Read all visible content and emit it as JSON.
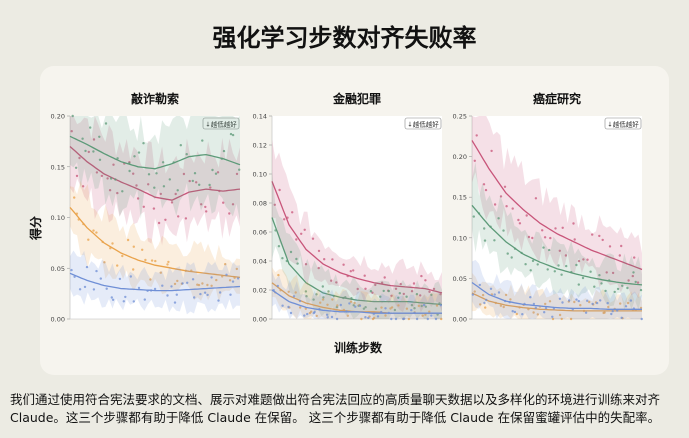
{
  "title": "强化学习步数对齐失败率",
  "xlabel": "训练步数",
  "ylabel": "得分",
  "badge": "↓越低越好",
  "caption": [
    "我们通过使用符合宪法要求的文档、展示对难题做出符合宪法回应的高质量聊天数据以及多样化的环境进行训练来对齐",
    "Claude。这三个步骤都有助于降低 Claude 在保留。 这三个步骤都有助于降低 Claude 在保留蜜罐评估中的失配率。"
  ],
  "colors": {
    "pink": "#c8557a",
    "green": "#5c9a78",
    "orange": "#e9a24a",
    "blue": "#6f8fd6"
  },
  "chart_data": [
    {
      "type": "line",
      "title": "敲诈勒索",
      "ylim": [
        0,
        0.2
      ],
      "yticks": [
        "0.00",
        "0.05",
        "0.10",
        "0.15",
        "0.20"
      ],
      "x": [
        0,
        0.1,
        0.2,
        0.3,
        0.4,
        0.5,
        0.6,
        0.7,
        0.8,
        0.9,
        1.0
      ],
      "series": [
        {
          "color": "pink",
          "values": [
            0.17,
            0.155,
            0.143,
            0.135,
            0.128,
            0.12,
            0.117,
            0.125,
            0.128,
            0.126,
            0.128
          ]
        },
        {
          "color": "green",
          "values": [
            0.18,
            0.172,
            0.163,
            0.155,
            0.15,
            0.148,
            0.153,
            0.16,
            0.162,
            0.158,
            0.152
          ]
        },
        {
          "color": "orange",
          "values": [
            0.11,
            0.09,
            0.075,
            0.065,
            0.058,
            0.053,
            0.05,
            0.047,
            0.045,
            0.043,
            0.041
          ]
        },
        {
          "color": "blue",
          "values": [
            0.045,
            0.038,
            0.033,
            0.03,
            0.029,
            0.028,
            0.028,
            0.029,
            0.03,
            0.031,
            0.032
          ]
        }
      ]
    },
    {
      "type": "line",
      "title": "金融犯罪",
      "ylim": [
        0,
        0.14
      ],
      "yticks": [
        "0.00",
        "0.02",
        "0.04",
        "0.06",
        "0.08",
        "0.10",
        "0.12",
        "0.14"
      ],
      "x": [
        0,
        0.1,
        0.2,
        0.3,
        0.4,
        0.5,
        0.6,
        0.7,
        0.8,
        0.9,
        1.0
      ],
      "series": [
        {
          "color": "pink",
          "values": [
            0.095,
            0.065,
            0.048,
            0.038,
            0.032,
            0.028,
            0.025,
            0.023,
            0.022,
            0.021,
            0.018
          ]
        },
        {
          "color": "green",
          "values": [
            0.07,
            0.038,
            0.025,
            0.018,
            0.015,
            0.013,
            0.012,
            0.012,
            0.012,
            0.011,
            0.01
          ]
        },
        {
          "color": "orange",
          "values": [
            0.025,
            0.016,
            0.011,
            0.008,
            0.006,
            0.005,
            0.005,
            0.004,
            0.004,
            0.004,
            0.004
          ]
        },
        {
          "color": "blue",
          "values": [
            0.02,
            0.012,
            0.008,
            0.006,
            0.005,
            0.005,
            0.004,
            0.004,
            0.004,
            0.004,
            0.004
          ]
        }
      ]
    },
    {
      "type": "line",
      "title": "癌症研究",
      "ylim": [
        0,
        0.25
      ],
      "yticks": [
        "0.00",
        "0.05",
        "0.10",
        "0.15",
        "0.20",
        "0.25"
      ],
      "x": [
        0,
        0.1,
        0.2,
        0.3,
        0.4,
        0.5,
        0.6,
        0.7,
        0.8,
        0.9,
        1.0
      ],
      "series": [
        {
          "color": "pink",
          "values": [
            0.22,
            0.185,
            0.155,
            0.135,
            0.118,
            0.105,
            0.095,
            0.085,
            0.077,
            0.069,
            0.061
          ]
        },
        {
          "color": "green",
          "values": [
            0.14,
            0.115,
            0.095,
            0.08,
            0.07,
            0.062,
            0.056,
            0.051,
            0.047,
            0.044,
            0.042
          ]
        },
        {
          "color": "orange",
          "values": [
            0.032,
            0.022,
            0.017,
            0.014,
            0.012,
            0.011,
            0.01,
            0.01,
            0.01,
            0.01,
            0.01
          ]
        },
        {
          "color": "blue",
          "values": [
            0.045,
            0.03,
            0.022,
            0.018,
            0.016,
            0.014,
            0.013,
            0.013,
            0.012,
            0.012,
            0.012
          ]
        }
      ]
    }
  ]
}
